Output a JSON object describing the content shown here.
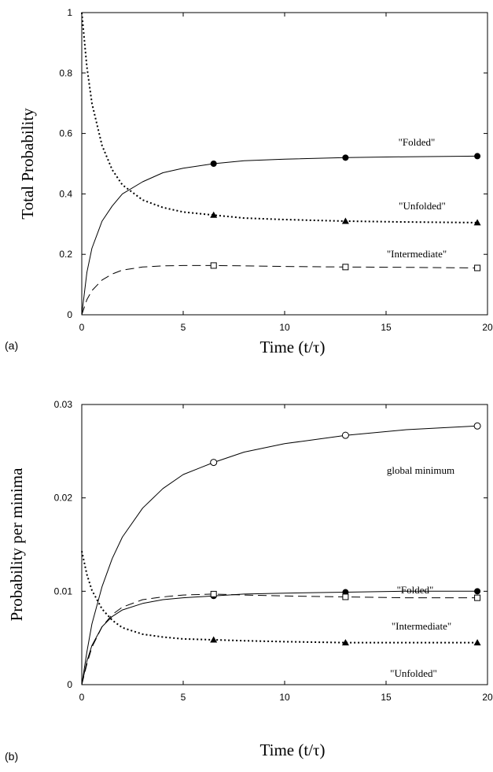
{
  "chart_data": [
    {
      "panel": "(a)",
      "type": "line",
      "xlabel": "Time  (t/τ)",
      "ylabel": "Total Probability",
      "xlim": [
        0,
        20
      ],
      "ylim": [
        0,
        1
      ],
      "xticks": [
        "0",
        "5",
        "10",
        "15",
        "20"
      ],
      "yticks": [
        "0",
        "0.2",
        "0.4",
        "0.6",
        "0.8",
        "1"
      ],
      "grid": false,
      "series": [
        {
          "name": "\"Folded\"",
          "style": "solid",
          "marker": "filled-circle",
          "x": [
            0,
            0.25,
            0.5,
            1,
            1.5,
            2,
            3,
            4,
            5,
            6.5,
            8,
            10,
            13,
            16,
            19.5
          ],
          "y": [
            0,
            0.14,
            0.22,
            0.31,
            0.36,
            0.4,
            0.44,
            0.47,
            0.485,
            0.5,
            0.51,
            0.515,
            0.52,
            0.523,
            0.525
          ],
          "marker_x": [
            6.5,
            13,
            19.5
          ],
          "marker_y": [
            0.5,
            0.52,
            0.525
          ]
        },
        {
          "name": "\"Unfolded\"",
          "style": "dotted",
          "marker": "filled-triangle",
          "x": [
            0,
            0.25,
            0.5,
            1,
            1.5,
            2,
            3,
            4,
            5,
            6.5,
            8,
            10,
            13,
            16,
            19.5
          ],
          "y": [
            1.0,
            0.82,
            0.7,
            0.56,
            0.48,
            0.43,
            0.38,
            0.355,
            0.34,
            0.33,
            0.32,
            0.315,
            0.31,
            0.307,
            0.305
          ],
          "marker_x": [
            6.5,
            13,
            19.5
          ],
          "marker_y": [
            0.33,
            0.31,
            0.305
          ]
        },
        {
          "name": "\"Intermediate\"",
          "style": "dashed",
          "marker": "open-square",
          "x": [
            0,
            0.25,
            0.5,
            1,
            1.5,
            2,
            3,
            4,
            5,
            6.5,
            8,
            10,
            13,
            16,
            19.5
          ],
          "y": [
            0,
            0.05,
            0.08,
            0.115,
            0.135,
            0.148,
            0.158,
            0.162,
            0.163,
            0.163,
            0.162,
            0.16,
            0.158,
            0.157,
            0.155
          ],
          "marker_x": [
            6.5,
            13,
            19.5
          ],
          "marker_y": [
            0.163,
            0.158,
            0.155
          ]
        }
      ]
    },
    {
      "panel": "(b)",
      "type": "line",
      "xlabel": "Time  (t/τ)",
      "ylabel": "Probability per minima",
      "xlim": [
        0,
        20
      ],
      "ylim": [
        0,
        0.03
      ],
      "xticks": [
        "0",
        "5",
        "10",
        "15",
        "20"
      ],
      "yticks": [
        "0",
        "0.01",
        "0.02",
        "0.03"
      ],
      "grid": false,
      "series": [
        {
          "name": "global minimum",
          "style": "solid",
          "marker": "open-circle",
          "x": [
            0,
            0.25,
            0.5,
            1,
            1.5,
            2,
            3,
            4,
            5,
            6.5,
            8,
            10,
            13,
            16,
            19.5
          ],
          "y": [
            0,
            0.0035,
            0.0065,
            0.0105,
            0.0135,
            0.0158,
            0.0189,
            0.021,
            0.0225,
            0.0238,
            0.0249,
            0.0258,
            0.0267,
            0.0273,
            0.0277
          ],
          "marker_x": [
            6.5,
            13,
            19.5
          ],
          "marker_y": [
            0.0238,
            0.0267,
            0.0277
          ]
        },
        {
          "name": "\"Folded\"",
          "style": "solid",
          "marker": "filled-circle",
          "x": [
            0,
            0.25,
            0.5,
            1,
            1.5,
            2,
            3,
            4,
            5,
            6.5,
            8,
            10,
            13,
            16,
            19.5
          ],
          "y": [
            0,
            0.0025,
            0.0042,
            0.0062,
            0.0073,
            0.008,
            0.0087,
            0.0091,
            0.0093,
            0.0095,
            0.0097,
            0.0098,
            0.0099,
            0.01,
            0.01
          ],
          "marker_x": [
            6.5,
            13,
            19.5
          ],
          "marker_y": [
            0.0095,
            0.0099,
            0.01
          ]
        },
        {
          "name": "\"Intermediate\"",
          "style": "dashed",
          "marker": "open-square",
          "x": [
            0,
            0.25,
            0.5,
            1,
            1.5,
            2,
            3,
            4,
            5,
            6.5,
            8,
            10,
            13,
            16,
            19.5
          ],
          "y": [
            0,
            0.0022,
            0.004,
            0.0062,
            0.0075,
            0.0083,
            0.0091,
            0.0094,
            0.0096,
            0.0097,
            0.0096,
            0.0095,
            0.0094,
            0.0093,
            0.0093
          ],
          "marker_x": [
            6.5,
            13,
            19.5
          ],
          "marker_y": [
            0.0097,
            0.0094,
            0.0093
          ]
        },
        {
          "name": "\"Unfolded\"",
          "style": "dotted",
          "marker": "filled-triangle",
          "x": [
            0,
            0.25,
            0.5,
            1,
            1.5,
            2,
            3,
            4,
            5,
            6.5,
            8,
            10,
            13,
            16,
            19.5
          ],
          "y": [
            0.0143,
            0.0118,
            0.0101,
            0.0081,
            0.0069,
            0.0061,
            0.0054,
            0.0051,
            0.0049,
            0.0048,
            0.0047,
            0.0046,
            0.0045,
            0.0045,
            0.0045
          ],
          "marker_x": [
            6.5,
            13,
            19.5
          ],
          "marker_y": [
            0.0048,
            0.0045,
            0.0045
          ]
        }
      ]
    }
  ]
}
